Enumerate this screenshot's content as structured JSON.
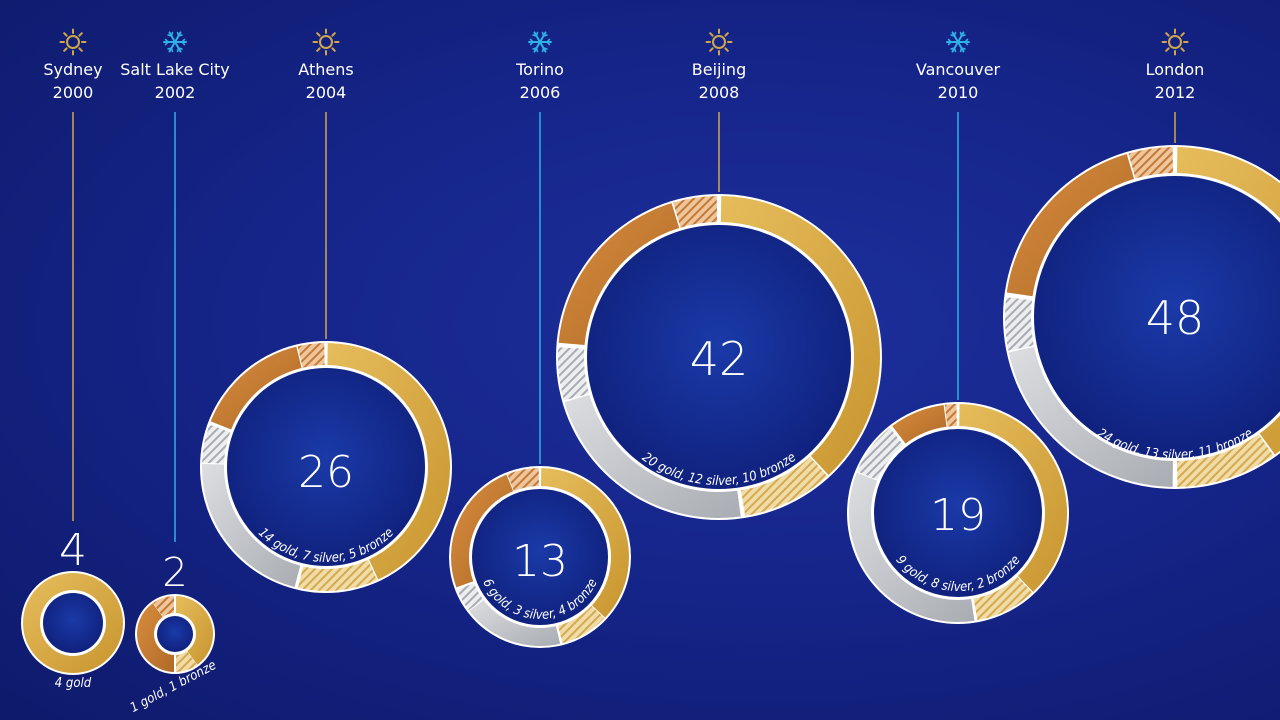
{
  "colors": {
    "summer": "#d2a64a",
    "winter": "#2fb0e6",
    "gold": "#d9aa45",
    "silver": "#c7c9cc",
    "bronze": "#c47a32",
    "text": "#ffffff"
  },
  "chart_data": {
    "type": "donut",
    "title": "",
    "games": [
      {
        "city": "Sydney",
        "year": "2000",
        "season": "summer",
        "icon": "sun-icon",
        "total": 4,
        "gold": 4,
        "silver": 0,
        "bronze": 0,
        "breakdown_label": "4 gold"
      },
      {
        "city": "Salt Lake City",
        "year": "2002",
        "season": "winter",
        "icon": "snowflake-icon",
        "total": 2,
        "gold": 1,
        "silver": 0,
        "bronze": 1,
        "breakdown_label": "1 gold, 1 bronze"
      },
      {
        "city": "Athens",
        "year": "2004",
        "season": "summer",
        "icon": "sun-icon",
        "total": 26,
        "gold": 14,
        "silver": 7,
        "bronze": 5,
        "breakdown_label": "14 gold, 7 silver, 5 bronze"
      },
      {
        "city": "Torino",
        "year": "2006",
        "season": "winter",
        "icon": "snowflake-icon",
        "total": 13,
        "gold": 6,
        "silver": 3,
        "bronze": 4,
        "breakdown_label": "6 gold, 3 silver, 4 bronze"
      },
      {
        "city": "Beijing",
        "year": "2008",
        "season": "summer",
        "icon": "sun-icon",
        "total": 42,
        "gold": 20,
        "silver": 12,
        "bronze": 10,
        "breakdown_label": "20 gold, 12 silver, 10 bronze"
      },
      {
        "city": "Vancouver",
        "year": "2010",
        "season": "winter",
        "icon": "snowflake-icon",
        "total": 19,
        "gold": 9,
        "silver": 8,
        "bronze": 2,
        "breakdown_label": "9 gold, 8 silver, 2 bronze"
      },
      {
        "city": "London",
        "year": "2012",
        "season": "summer",
        "icon": "sun-icon",
        "total": 48,
        "gold": 24,
        "silver": 13,
        "bronze": 11,
        "breakdown_label": "24 gold, 13 silver, 11 bronze"
      }
    ]
  }
}
